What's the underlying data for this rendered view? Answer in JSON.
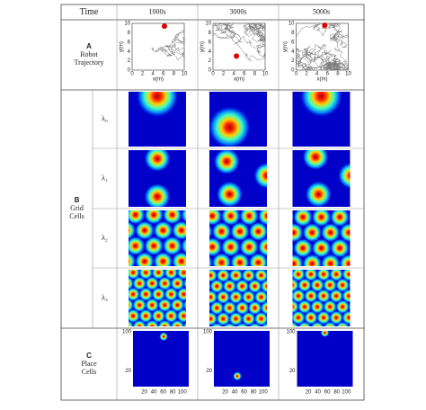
{
  "header": {
    "time": "Time",
    "columns": [
      "1000s",
      "3000s",
      "5000s"
    ]
  },
  "rows": {
    "trajectory": {
      "letter": "A",
      "label": [
        "Robot",
        "Trajectory"
      ],
      "x_label": "x(m)",
      "y_label": "y(m)",
      "ticks": [
        "0",
        "2",
        "4",
        "6",
        "8",
        "10"
      ]
    },
    "grid": {
      "letter": "B",
      "label": [
        "Grid",
        "Cells"
      ],
      "scales": [
        "λ₀",
        "λ₁",
        "λ₂",
        "λ₃"
      ]
    },
    "place": {
      "letter": "C",
      "label": [
        "Place",
        "Cells"
      ],
      "y_ticks": [
        "100",
        "20"
      ],
      "x_ticks": [
        "20",
        "40",
        "60",
        "80",
        "100"
      ]
    }
  }
}
